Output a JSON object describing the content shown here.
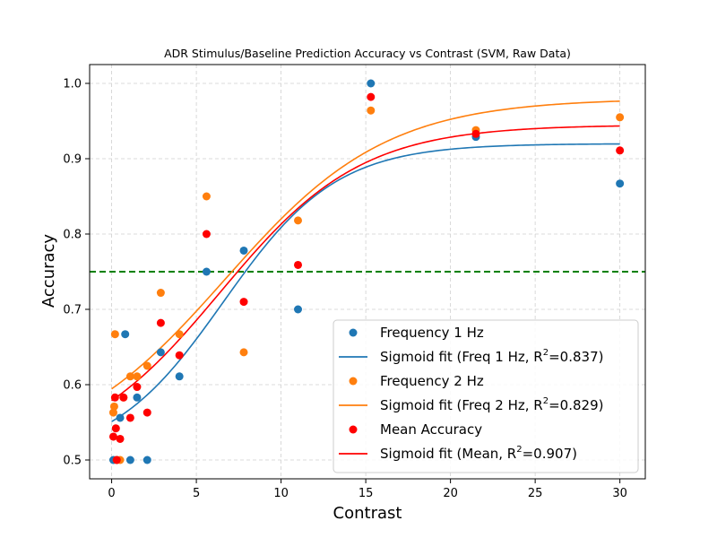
{
  "chart_data": {
    "type": "scatter",
    "title": "ADR Stimulus/Baseline Prediction Accuracy vs Contrast (SVM, Raw Data)",
    "xlabel": "Contrast",
    "ylabel": "Accuracy",
    "xlim": [
      -1.3,
      31.5
    ],
    "ylim": [
      0.475,
      1.025
    ],
    "xticks": [
      0,
      5,
      10,
      15,
      20,
      25,
      30
    ],
    "yticks": [
      0.5,
      0.6,
      0.7,
      0.8,
      0.9,
      1.0
    ],
    "grid": true,
    "legend_position": "bottom-right",
    "threshold": {
      "y": 0.75,
      "color": "#008000",
      "style": "dashed"
    },
    "series": [
      {
        "name": "Frequency 1 Hz",
        "kind": "scatter",
        "color": "#1f77b4",
        "points": [
          [
            0.1,
            0.5
          ],
          [
            0.3,
            0.5
          ],
          [
            0.5,
            0.556
          ],
          [
            0.8,
            0.667
          ],
          [
            1.1,
            0.5
          ],
          [
            1.5,
            0.583
          ],
          [
            2.1,
            0.5
          ],
          [
            2.9,
            0.643
          ],
          [
            4.0,
            0.611
          ],
          [
            5.6,
            0.75
          ],
          [
            7.8,
            0.778
          ],
          [
            11.0,
            0.7
          ],
          [
            15.3,
            1.0
          ],
          [
            21.5,
            0.929
          ],
          [
            30.0,
            0.867
          ]
        ]
      },
      {
        "name": "Sigmoid fit (Freq 1 Hz, R²=0.837)",
        "legend_main": "Sigmoid fit (Freq 1 Hz, R",
        "legend_sup": "2",
        "legend_tail": "=0.837)",
        "kind": "line",
        "color": "#1f77b4",
        "params": {
          "L": 0.5,
          "U": 0.92,
          "k": 0.3,
          "x0": 6.6
        }
      },
      {
        "name": "Frequency 2 Hz",
        "kind": "scatter",
        "color": "#ff7f0e",
        "points": [
          [
            0.1,
            0.563
          ],
          [
            0.15,
            0.571
          ],
          [
            0.2,
            0.667
          ],
          [
            0.3,
            0.5
          ],
          [
            0.5,
            0.5
          ],
          [
            0.7,
            0.583
          ],
          [
            1.1,
            0.611
          ],
          [
            1.5,
            0.611
          ],
          [
            2.1,
            0.625
          ],
          [
            2.9,
            0.722
          ],
          [
            4.0,
            0.667
          ],
          [
            5.6,
            0.85
          ],
          [
            7.8,
            0.643
          ],
          [
            11.0,
            0.818
          ],
          [
            15.3,
            0.964
          ],
          [
            21.5,
            0.938
          ],
          [
            30.0,
            0.955
          ]
        ]
      },
      {
        "name": "Sigmoid fit (Freq 2 Hz, R²=0.829)",
        "legend_main": "Sigmoid fit (Freq 2 Hz, R",
        "legend_sup": "2",
        "legend_tail": "=0.829)",
        "kind": "line",
        "color": "#ff7f0e",
        "params": {
          "L": 0.5,
          "U": 0.98,
          "k": 0.21,
          "x0": 6.7
        }
      },
      {
        "name": "Mean Accuracy",
        "kind": "scatter",
        "color": "#ff0000",
        "points": [
          [
            0.1,
            0.531
          ],
          [
            0.2,
            0.583
          ],
          [
            0.25,
            0.542
          ],
          [
            0.3,
            0.5
          ],
          [
            0.5,
            0.528
          ],
          [
            0.7,
            0.583
          ],
          [
            1.1,
            0.556
          ],
          [
            1.5,
            0.597
          ],
          [
            2.1,
            0.563
          ],
          [
            2.9,
            0.682
          ],
          [
            4.0,
            0.639
          ],
          [
            5.6,
            0.8
          ],
          [
            7.8,
            0.71
          ],
          [
            11.0,
            0.759
          ],
          [
            15.3,
            0.982
          ],
          [
            21.5,
            0.933
          ],
          [
            30.0,
            0.911
          ]
        ]
      },
      {
        "name": "Sigmoid fit (Mean, R²=0.907)",
        "legend_main": "Sigmoid fit (Mean, R",
        "legend_sup": "2",
        "legend_tail": "=0.907)",
        "kind": "line",
        "color": "#ff0000",
        "params": {
          "L": 0.5,
          "U": 0.945,
          "k": 0.24,
          "x0": 6.4
        }
      }
    ]
  }
}
